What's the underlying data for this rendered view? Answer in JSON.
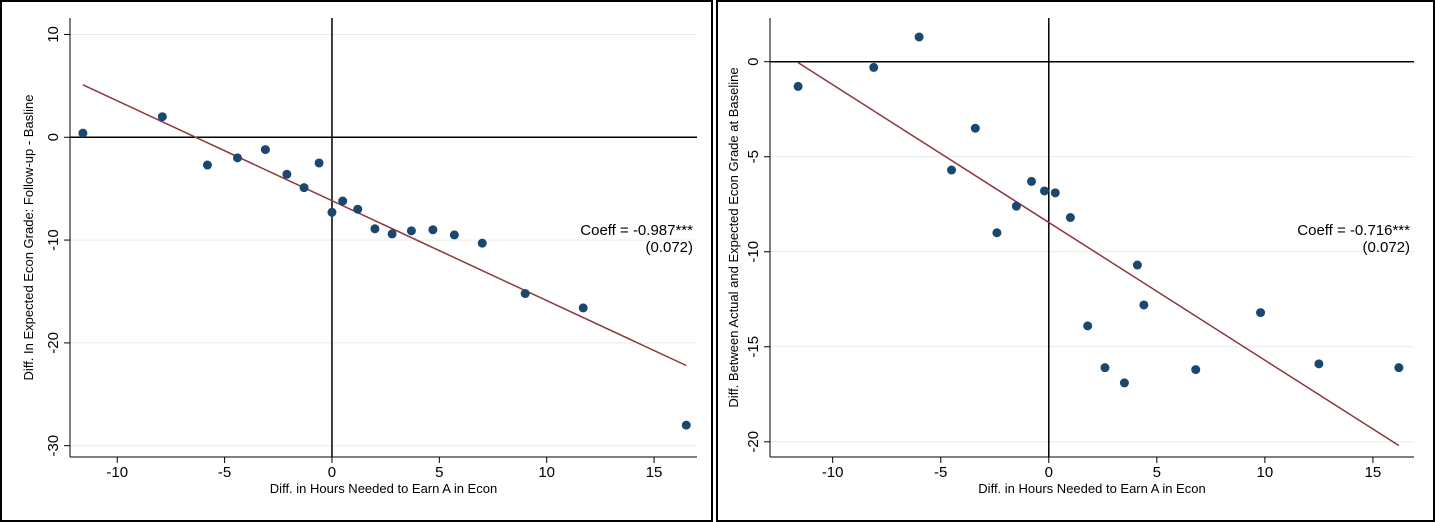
{
  "chart_data": [
    {
      "type": "scatter",
      "x_label": "Diff. in Hours Needed to Earn A in Econ",
      "y_label": "Diff. In Expected Econ Grade: Follow-up - Basline",
      "x": [
        -11.6,
        -7.9,
        -5.8,
        -4.4,
        -3.1,
        -2.1,
        -1.3,
        -0.6,
        0.0,
        0.5,
        1.2,
        2.0,
        2.8,
        3.7,
        4.7,
        5.7,
        7.0,
        9.0,
        11.7,
        16.5
      ],
      "values": [
        0.4,
        2.0,
        -2.7,
        -2.0,
        -1.2,
        -3.6,
        -4.9,
        -2.5,
        -7.3,
        -6.2,
        -7.0,
        -8.9,
        -9.4,
        -9.1,
        -9.0,
        -9.5,
        -10.3,
        -15.2,
        -16.6,
        -28.0
      ],
      "color": "#1a476f",
      "fit": {
        "x": [
          -11.6,
          16.5
        ],
        "y": [
          5.1,
          -22.2
        ],
        "color": "#90353b"
      },
      "annotation": [
        "Coeff = -0.987***",
        "(0.072)"
      ],
      "xlim": [
        -12.2,
        17.0
      ],
      "ylim": [
        -31.1,
        11.6
      ],
      "xticks": [
        -10,
        -5,
        0,
        5,
        10,
        15
      ],
      "yticks": [
        10,
        0,
        -10,
        -20,
        -30
      ],
      "grid": true,
      "xline": 0,
      "yline": 0
    },
    {
      "type": "scatter",
      "x_label": "Diff. in Hours Needed to Earn A in Econ",
      "y_label": "Diff. Between Actual and Expected Econ Grade at Baseline",
      "x": [
        -11.6,
        -8.1,
        -6.0,
        -4.5,
        -3.4,
        -2.4,
        -1.5,
        -0.8,
        -0.2,
        0.3,
        1.0,
        1.8,
        2.6,
        3.5,
        4.1,
        4.4,
        6.8,
        9.8,
        12.5,
        16.2
      ],
      "values": [
        -1.3,
        -0.3,
        1.3,
        -5.7,
        -3.5,
        -9.0,
        -7.6,
        -6.3,
        -6.8,
        -6.9,
        -8.2,
        -13.9,
        -16.1,
        -16.9,
        -10.7,
        -12.8,
        -16.2,
        -13.2,
        -15.9,
        -16.1
      ],
      "color": "#1a476f",
      "fit": {
        "x": [
          -11.6,
          16.2
        ],
        "y": [
          -0.05,
          -20.2
        ],
        "color": "#90353b"
      },
      "annotation": [
        "Coeff = -0.716***",
        "(0.072)"
      ],
      "xlim": [
        -12.9,
        16.9
      ],
      "ylim": [
        -20.8,
        2.3
      ],
      "xticks": [
        -10,
        -5,
        0,
        5,
        10,
        15
      ],
      "yticks": [
        0,
        -5,
        -10,
        -15,
        -20
      ],
      "grid": true,
      "xline": 0,
      "yline": 0
    }
  ]
}
